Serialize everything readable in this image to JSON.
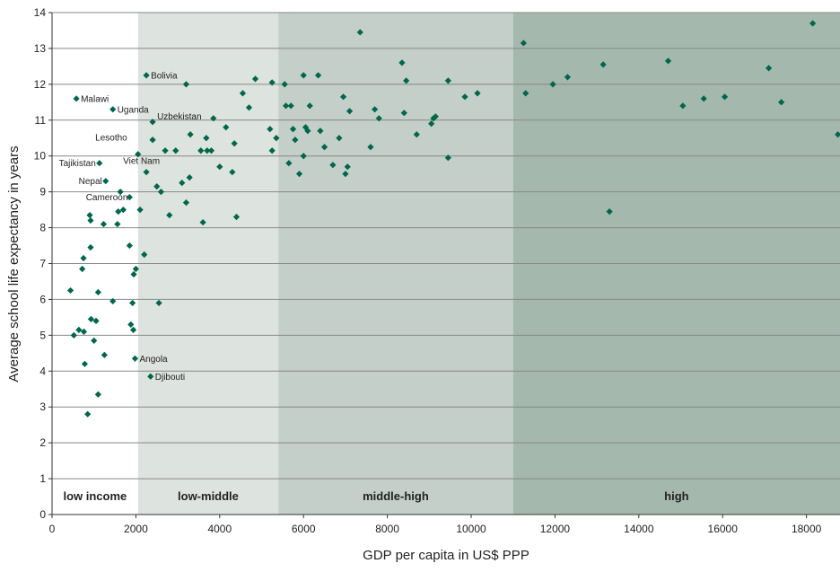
{
  "chart_data": {
    "type": "scatter",
    "xlabel": "GDP per capita in US$ PPP",
    "ylabel": "Average school life expectancy in years",
    "xlim": [
      0,
      18800
    ],
    "ylim": [
      0,
      14
    ],
    "x_ticks": [
      0,
      2000,
      4000,
      6000,
      8000,
      10000,
      12000,
      14000,
      16000,
      18000
    ],
    "y_ticks": [
      0,
      1,
      2,
      3,
      4,
      5,
      6,
      7,
      8,
      9,
      10,
      11,
      12,
      13,
      14
    ],
    "grid": "horizontal",
    "marker_color": "#00664d",
    "regions": [
      {
        "label": "low income",
        "x0": 0,
        "x1": 2050,
        "color": "#ffffff"
      },
      {
        "label": "low-middle",
        "x0": 2050,
        "x1": 5400,
        "color": "#dde3de"
      },
      {
        "label": "middle-high",
        "x0": 5400,
        "x1": 11000,
        "color": "#c3cfc8"
      },
      {
        "label": "high",
        "x0": 11000,
        "x1": 18800,
        "color": "#a4b8ae"
      }
    ],
    "points": [
      {
        "x": 580,
        "y": 11.6,
        "label": "Malawi"
      },
      {
        "x": 1450,
        "y": 11.3,
        "label": "Uganda"
      },
      {
        "x": 2250,
        "y": 12.25,
        "label": "Bolivia"
      },
      {
        "x": 2400,
        "y": 10.95,
        "label": "Uzbekistan"
      },
      {
        "x": 2050,
        "y": 10.05,
        "label": "Lesotho"
      },
      {
        "x": 1130,
        "y": 9.8,
        "label": "Tajikistan"
      },
      {
        "x": 2250,
        "y": 9.55,
        "label": "Viet Nam"
      },
      {
        "x": 1280,
        "y": 9.3,
        "label": "Nepal"
      },
      {
        "x": 1850,
        "y": 8.85,
        "label": "Cameroon"
      },
      {
        "x": 1980,
        "y": 4.35,
        "label": "Angola"
      },
      {
        "x": 2350,
        "y": 3.85,
        "label": "Djibouti"
      },
      {
        "x": 440,
        "y": 6.25
      },
      {
        "x": 520,
        "y": 5.0
      },
      {
        "x": 640,
        "y": 5.15
      },
      {
        "x": 720,
        "y": 6.85
      },
      {
        "x": 750,
        "y": 7.15
      },
      {
        "x": 760,
        "y": 5.1
      },
      {
        "x": 780,
        "y": 4.2
      },
      {
        "x": 850,
        "y": 2.8
      },
      {
        "x": 900,
        "y": 8.35
      },
      {
        "x": 920,
        "y": 8.2
      },
      {
        "x": 920,
        "y": 7.45
      },
      {
        "x": 930,
        "y": 5.45
      },
      {
        "x": 1000,
        "y": 4.85
      },
      {
        "x": 1050,
        "y": 5.4
      },
      {
        "x": 1100,
        "y": 6.2
      },
      {
        "x": 1100,
        "y": 3.35
      },
      {
        "x": 1250,
        "y": 4.45
      },
      {
        "x": 1230,
        "y": 8.1
      },
      {
        "x": 1450,
        "y": 5.95
      },
      {
        "x": 1560,
        "y": 8.1
      },
      {
        "x": 1580,
        "y": 8.45
      },
      {
        "x": 1630,
        "y": 9.0
      },
      {
        "x": 1700,
        "y": 8.5
      },
      {
        "x": 1850,
        "y": 7.5
      },
      {
        "x": 1880,
        "y": 5.3
      },
      {
        "x": 1920,
        "y": 5.9
      },
      {
        "x": 1940,
        "y": 5.15
      },
      {
        "x": 1950,
        "y": 6.7
      },
      {
        "x": 2000,
        "y": 6.85
      },
      {
        "x": 2100,
        "y": 8.5
      },
      {
        "x": 2200,
        "y": 7.25
      },
      {
        "x": 2400,
        "y": 10.45
      },
      {
        "x": 2500,
        "y": 9.15
      },
      {
        "x": 2550,
        "y": 5.9
      },
      {
        "x": 2600,
        "y": 9.0
      },
      {
        "x": 2700,
        "y": 10.15
      },
      {
        "x": 2800,
        "y": 8.35
      },
      {
        "x": 2950,
        "y": 10.15
      },
      {
        "x": 3100,
        "y": 9.25
      },
      {
        "x": 3200,
        "y": 12.0
      },
      {
        "x": 3200,
        "y": 8.7
      },
      {
        "x": 3280,
        "y": 9.4
      },
      {
        "x": 3300,
        "y": 10.6
      },
      {
        "x": 3550,
        "y": 10.15
      },
      {
        "x": 3600,
        "y": 8.15
      },
      {
        "x": 3680,
        "y": 10.5
      },
      {
        "x": 3700,
        "y": 10.15
      },
      {
        "x": 3800,
        "y": 10.15
      },
      {
        "x": 3850,
        "y": 11.05
      },
      {
        "x": 4000,
        "y": 9.7
      },
      {
        "x": 4150,
        "y": 10.8
      },
      {
        "x": 4300,
        "y": 9.55
      },
      {
        "x": 4350,
        "y": 10.35
      },
      {
        "x": 4400,
        "y": 8.3
      },
      {
        "x": 4550,
        "y": 11.75
      },
      {
        "x": 4700,
        "y": 11.35
      },
      {
        "x": 4850,
        "y": 12.15
      },
      {
        "x": 5200,
        "y": 10.75
      },
      {
        "x": 5250,
        "y": 10.15
      },
      {
        "x": 5250,
        "y": 12.05
      },
      {
        "x": 5350,
        "y": 10.5
      },
      {
        "x": 5550,
        "y": 12.0
      },
      {
        "x": 5580,
        "y": 11.4
      },
      {
        "x": 5650,
        "y": 9.8
      },
      {
        "x": 5700,
        "y": 11.4
      },
      {
        "x": 5750,
        "y": 10.75
      },
      {
        "x": 5800,
        "y": 10.45
      },
      {
        "x": 5900,
        "y": 9.5
      },
      {
        "x": 6000,
        "y": 10.0
      },
      {
        "x": 6000,
        "y": 12.25
      },
      {
        "x": 6050,
        "y": 10.8
      },
      {
        "x": 6100,
        "y": 10.7
      },
      {
        "x": 6150,
        "y": 11.4
      },
      {
        "x": 6350,
        "y": 12.25
      },
      {
        "x": 6400,
        "y": 10.7
      },
      {
        "x": 6500,
        "y": 10.25
      },
      {
        "x": 6700,
        "y": 9.75
      },
      {
        "x": 6850,
        "y": 10.5
      },
      {
        "x": 6950,
        "y": 11.65
      },
      {
        "x": 7000,
        "y": 9.5
      },
      {
        "x": 7050,
        "y": 9.7
      },
      {
        "x": 7100,
        "y": 11.25
      },
      {
        "x": 7350,
        "y": 13.45
      },
      {
        "x": 7600,
        "y": 10.25
      },
      {
        "x": 7700,
        "y": 11.3
      },
      {
        "x": 7800,
        "y": 11.05
      },
      {
        "x": 8350,
        "y": 12.6
      },
      {
        "x": 8400,
        "y": 11.2
      },
      {
        "x": 8450,
        "y": 12.1
      },
      {
        "x": 8700,
        "y": 10.6
      },
      {
        "x": 9050,
        "y": 10.9
      },
      {
        "x": 9100,
        "y": 11.05
      },
      {
        "x": 9150,
        "y": 11.1
      },
      {
        "x": 9450,
        "y": 9.95
      },
      {
        "x": 9450,
        "y": 12.1
      },
      {
        "x": 9850,
        "y": 11.65
      },
      {
        "x": 10150,
        "y": 11.75
      },
      {
        "x": 11250,
        "y": 13.15
      },
      {
        "x": 11300,
        "y": 11.75
      },
      {
        "x": 11950,
        "y": 12.0
      },
      {
        "x": 12300,
        "y": 12.2
      },
      {
        "x": 13150,
        "y": 12.55
      },
      {
        "x": 13300,
        "y": 8.45
      },
      {
        "x": 14700,
        "y": 12.65
      },
      {
        "x": 15050,
        "y": 11.4
      },
      {
        "x": 15550,
        "y": 11.6
      },
      {
        "x": 16050,
        "y": 11.65
      },
      {
        "x": 17100,
        "y": 12.45
      },
      {
        "x": 17400,
        "y": 11.5
      },
      {
        "x": 18150,
        "y": 13.7
      },
      {
        "x": 18750,
        "y": 10.6
      }
    ]
  }
}
